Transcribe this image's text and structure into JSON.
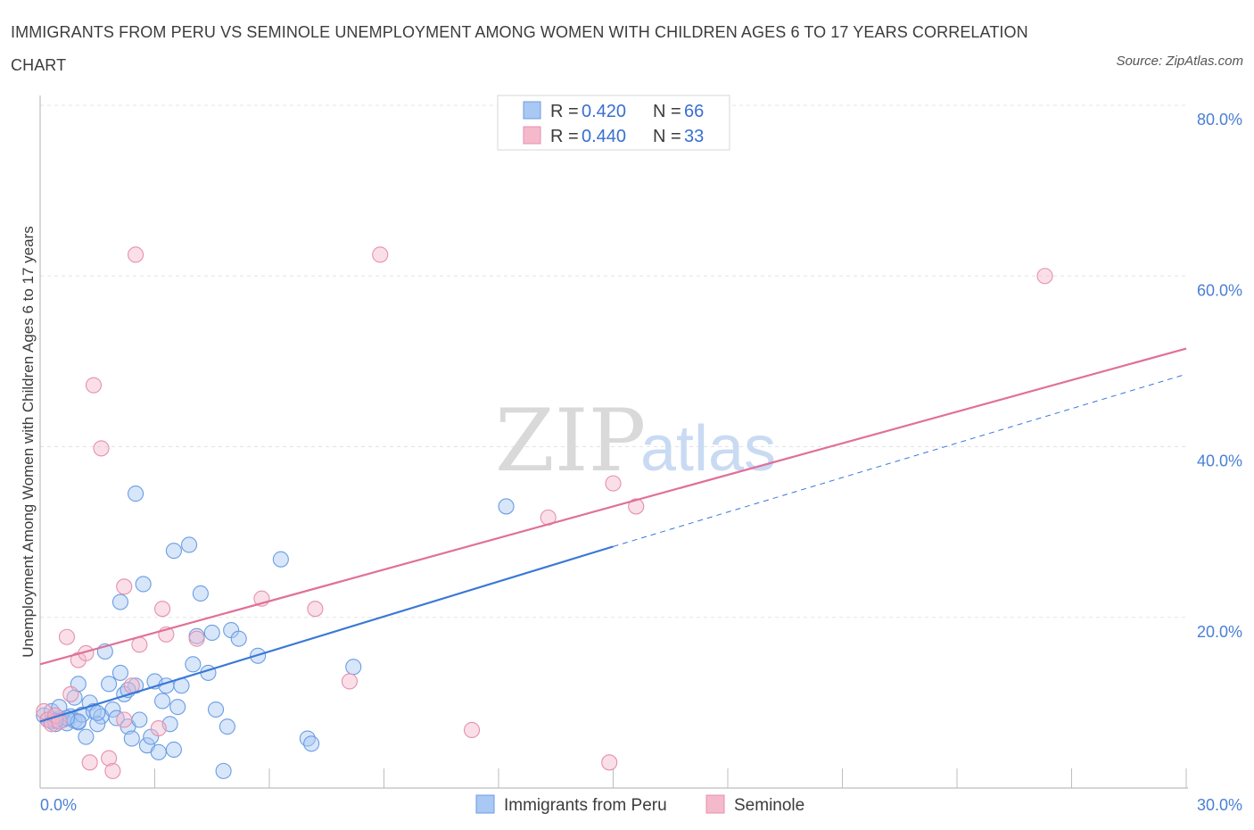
{
  "title": "IMMIGRANTS FROM PERU VS SEMINOLE UNEMPLOYMENT AMONG WOMEN WITH CHILDREN AGES 6 TO 17 YEARS CORRELATION CHART",
  "source": "Source: ZipAtlas.com",
  "watermark": {
    "zip": "ZIP",
    "atlas": "atlas"
  },
  "colors": {
    "blue": "#3a78d6",
    "pink": "#e0709a",
    "blue_fill": "#a9c8f3",
    "pink_fill": "#f5b9cc"
  },
  "chart_data": {
    "type": "scatter",
    "title": "IMMIGRANTS FROM PERU VS SEMINOLE UNEMPLOYMENT AMONG WOMEN WITH CHILDREN AGES 6 TO 17 YEARS CORRELATION CHART",
    "ylabel": "Unemployment Among Women with Children Ages 6 to 17 years",
    "xlim": [
      0,
      30
    ],
    "ylim": [
      0,
      80
    ],
    "x_ticks": [
      {
        "value": 0,
        "label": "0.0%"
      },
      {
        "value": 30,
        "label": "30.0%"
      }
    ],
    "y_ticks": [
      {
        "value": 20,
        "label": "20.0%"
      },
      {
        "value": 40,
        "label": "40.0%"
      },
      {
        "value": 60,
        "label": "60.0%"
      },
      {
        "value": 80,
        "label": "80.0%"
      }
    ],
    "legend_stats": [
      {
        "r_label": "R = ",
        "r": "0.420",
        "n_label": "N = ",
        "n": "66"
      },
      {
        "r_label": "R = ",
        "r": "0.440",
        "n_label": "N = ",
        "n": "33"
      }
    ],
    "series": [
      {
        "name": "Immigrants from Peru",
        "trend": {
          "x0": 0,
          "y0": 7.8,
          "x1": 15,
          "y1": 28.3,
          "dash_x1": 30,
          "dash_y1": 48.5
        },
        "points": [
          [
            0.1,
            8.5
          ],
          [
            0.2,
            8.0
          ],
          [
            0.3,
            7.8
          ],
          [
            0.4,
            7.5
          ],
          [
            0.5,
            8.2
          ],
          [
            0.3,
            9.0
          ],
          [
            0.6,
            8.0
          ],
          [
            0.7,
            7.6
          ],
          [
            0.8,
            8.4
          ],
          [
            0.9,
            7.9
          ],
          [
            1.0,
            7.7
          ],
          [
            1.1,
            8.6
          ],
          [
            0.5,
            9.5
          ],
          [
            0.9,
            10.6
          ],
          [
            1.0,
            12.2
          ],
          [
            1.3,
            10.0
          ],
          [
            1.4,
            9.0
          ],
          [
            1.2,
            6.0
          ],
          [
            1.6,
            8.4
          ],
          [
            1.5,
            7.5
          ],
          [
            1.7,
            16.0
          ],
          [
            1.8,
            12.2
          ],
          [
            1.9,
            9.2
          ],
          [
            2.0,
            8.2
          ],
          [
            2.1,
            13.5
          ],
          [
            2.2,
            11.0
          ],
          [
            2.3,
            7.2
          ],
          [
            2.4,
            5.8
          ],
          [
            2.5,
            12.0
          ],
          [
            2.6,
            8.0
          ],
          [
            2.8,
            5.0
          ],
          [
            2.9,
            6.0
          ],
          [
            3.0,
            12.5
          ],
          [
            3.1,
            4.2
          ],
          [
            3.2,
            10.2
          ],
          [
            3.3,
            12.0
          ],
          [
            3.4,
            7.5
          ],
          [
            3.5,
            4.5
          ],
          [
            3.6,
            9.5
          ],
          [
            3.7,
            12.0
          ],
          [
            2.1,
            21.8
          ],
          [
            2.5,
            34.5
          ],
          [
            2.7,
            23.9
          ],
          [
            3.5,
            27.8
          ],
          [
            3.9,
            28.5
          ],
          [
            4.0,
            14.5
          ],
          [
            4.1,
            17.8
          ],
          [
            4.2,
            22.8
          ],
          [
            4.4,
            13.5
          ],
          [
            4.5,
            18.2
          ],
          [
            4.6,
            9.2
          ],
          [
            4.8,
            2.0
          ],
          [
            4.9,
            7.2
          ],
          [
            5.0,
            18.5
          ],
          [
            5.2,
            17.5
          ],
          [
            5.7,
            15.5
          ],
          [
            6.3,
            26.8
          ],
          [
            7.0,
            5.8
          ],
          [
            7.1,
            5.2
          ],
          [
            8.2,
            14.2
          ],
          [
            12.2,
            33.0
          ],
          [
            1.0,
            7.8
          ],
          [
            0.7,
            8.2
          ],
          [
            0.4,
            7.9
          ],
          [
            2.3,
            11.5
          ],
          [
            1.5,
            8.8
          ]
        ]
      },
      {
        "name": "Seminole",
        "trend": {
          "x0": 0,
          "y0": 14.5,
          "x1": 30,
          "y1": 51.5
        },
        "points": [
          [
            0.1,
            9.0
          ],
          [
            0.2,
            8.0
          ],
          [
            0.3,
            7.5
          ],
          [
            0.4,
            8.5
          ],
          [
            0.5,
            7.8
          ],
          [
            0.7,
            17.7
          ],
          [
            0.8,
            11.0
          ],
          [
            1.0,
            15.0
          ],
          [
            1.2,
            15.8
          ],
          [
            1.3,
            3.0
          ],
          [
            1.4,
            47.2
          ],
          [
            1.6,
            39.8
          ],
          [
            1.8,
            3.5
          ],
          [
            1.9,
            2.0
          ],
          [
            2.2,
            8.0
          ],
          [
            2.4,
            12.0
          ],
          [
            2.6,
            16.8
          ],
          [
            2.2,
            23.6
          ],
          [
            2.5,
            62.5
          ],
          [
            3.1,
            7.0
          ],
          [
            3.2,
            21.0
          ],
          [
            3.3,
            18.0
          ],
          [
            4.1,
            17.5
          ],
          [
            5.8,
            22.2
          ],
          [
            7.2,
            21.0
          ],
          [
            8.1,
            12.5
          ],
          [
            8.9,
            62.5
          ],
          [
            11.3,
            6.8
          ],
          [
            13.3,
            31.7
          ],
          [
            14.9,
            3.0
          ],
          [
            15.0,
            35.7
          ],
          [
            15.6,
            33.0
          ],
          [
            26.3,
            60.0
          ]
        ]
      }
    ]
  }
}
